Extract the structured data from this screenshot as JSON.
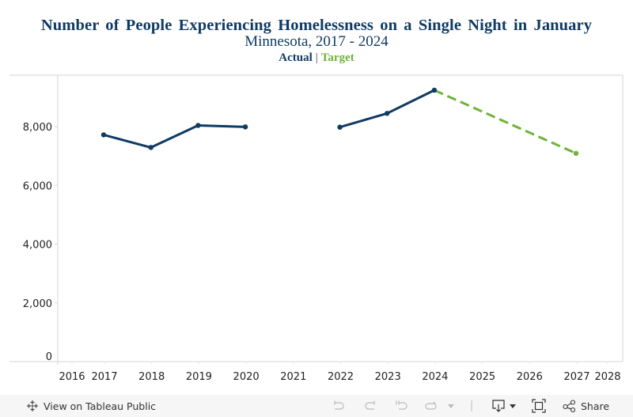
{
  "chart_data": {
    "type": "line",
    "title": "Number of People Experiencing Homelessness on a Single Night in January",
    "subtitle": "Minnesota, 2017 - 2024",
    "legend": [
      {
        "name": "Actual",
        "color": "#0f3a63"
      },
      {
        "name": "Target",
        "color": "#6fb33a"
      }
    ],
    "legend_placement": "top-center",
    "xlabel": "",
    "ylabel": "",
    "x_ticks": [
      2016,
      2017,
      2018,
      2019,
      2020,
      2021,
      2022,
      2023,
      2024,
      2025,
      2026,
      2027,
      2028
    ],
    "y_ticks": [
      0,
      2000,
      4000,
      6000,
      8000
    ],
    "y_tick_labels": [
      "0",
      "2,000",
      "4,000",
      "6,000",
      "8,000"
    ],
    "ylim": [
      0,
      9500
    ],
    "grid": false,
    "series": [
      {
        "name": "Actual",
        "color": "#0f3a63",
        "style": "solid",
        "segments": [
          [
            {
              "x": 2017,
              "y": 7720
            },
            {
              "x": 2018,
              "y": 7290
            },
            {
              "x": 2019,
              "y": 8040
            },
            {
              "x": 2020,
              "y": 7990
            }
          ],
          [
            {
              "x": 2022,
              "y": 7980
            },
            {
              "x": 2023,
              "y": 8450
            },
            {
              "x": 2024,
              "y": 9240
            }
          ]
        ]
      },
      {
        "name": "Target",
        "color": "#6fb33a",
        "style": "dashed",
        "segments": [
          [
            {
              "x": 2024,
              "y": 9240
            },
            {
              "x": 2027,
              "y": 7090
            }
          ]
        ]
      }
    ]
  },
  "footer": {
    "view_label": "View on Tableau Public",
    "share_label": "Share",
    "icons": {
      "logo": "tableau-logo-icon",
      "undo": "undo-icon",
      "redo": "redo-icon",
      "revert": "revert-icon",
      "refresh": "refresh-icon",
      "pause_dropdown": "chevron-down-icon",
      "download": "download-icon",
      "download_dropdown": "chevron-down-icon",
      "fullscreen": "fullscreen-icon",
      "share": "share-icon"
    }
  }
}
